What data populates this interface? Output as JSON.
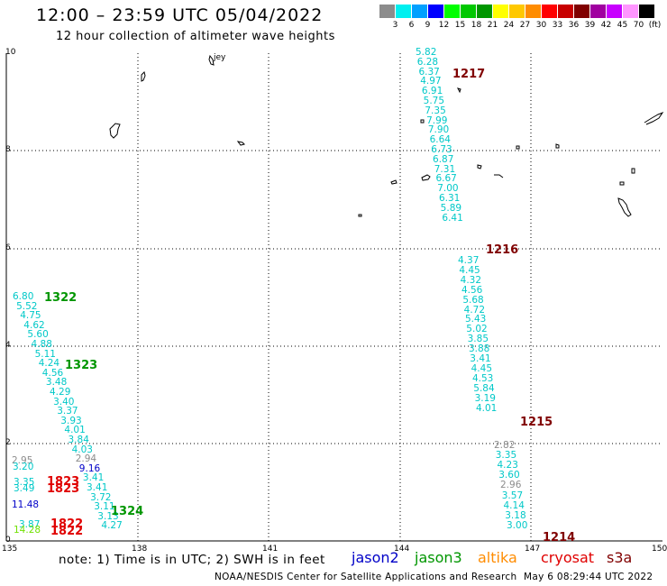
{
  "header": {
    "title": "12:00 – 23:59 UTC 05/04/2022",
    "subtitle": "12 hour collection of altimeter wave heights"
  },
  "color_scale": {
    "labels": [
      "3",
      "6",
      "9",
      "12",
      "15",
      "18",
      "21",
      "24",
      "27",
      "30",
      "33",
      "36",
      "39",
      "42",
      "45",
      "70",
      "(ft)"
    ],
    "colors": [
      "#8c8c8c",
      "#00f0f0",
      "#00a0ff",
      "#0000ff",
      "#00ff00",
      "#00c800",
      "#009600",
      "#ffff00",
      "#ffc800",
      "#ff8c00",
      "#ff0000",
      "#c80000",
      "#800000",
      "#a000a0",
      "#c800ff",
      "#ff96ff",
      "#000000"
    ]
  },
  "axes": {
    "lat_labels": [
      "10",
      "8",
      "6",
      "4",
      "2",
      "0"
    ],
    "lon_labels": [
      "135",
      "138",
      "141",
      "144",
      "147",
      "150"
    ]
  },
  "passes": {
    "p1217": {
      "id": "1217",
      "color": "#800000",
      "values": [
        "5.82",
        "6.28",
        "6.37",
        "4.97",
        "6.91",
        "5.75",
        "7.35",
        "7.99",
        "7.90",
        "6.64",
        "6.73",
        "6.87",
        "7.31",
        "6.67",
        "7.00",
        "6.31",
        "5.89",
        "6.41"
      ]
    },
    "p1216": {
      "id": "1216",
      "color": "#800000",
      "values": [
        "4.37",
        "4.45",
        "4.32",
        "4.56",
        "5.68",
        "4.72",
        "5.43",
        "5.02",
        "3.85",
        "3.88",
        "3.41",
        "4.45",
        "4.53",
        "5.84",
        "3.19",
        "4.01"
      ]
    },
    "p1215": {
      "id": "1215",
      "color": "#800000",
      "values": [
        "2.82",
        "3.35",
        "4.23",
        "3.60",
        "2.96",
        "3.57",
        "4.14",
        "3.18",
        "3.00"
      ]
    },
    "p1214": {
      "id": "1214",
      "color": "#800000"
    },
    "p1322": {
      "id": "1322",
      "color": "#009600",
      "values": [
        "6.80",
        "5.52",
        "4.75",
        "4.62",
        "5.60",
        "4.88",
        "5.11",
        "4.24",
        "4.56",
        "3.48",
        "4.29",
        "3.40",
        "3.37",
        "3.93",
        "4.01",
        "3.84",
        "4.03",
        "2.94",
        "9.16",
        "3.41",
        "3.41",
        "3.72",
        "3.11",
        "3.13",
        "4.27"
      ]
    },
    "p1323": {
      "id": "1323",
      "color": "#009600"
    },
    "p1324": {
      "id": "1324",
      "color": "#009600"
    },
    "left_cluster": {
      "v_295": "2.95",
      "v_320": "3.20",
      "v_335": "3.35",
      "v_349": "3.49",
      "v_1148": "11.48",
      "v_387": "3.87",
      "v_1428": "14.28",
      "id_1823a": "1823",
      "id_1823b": "1823",
      "id_1822a": "1822",
      "id_1822b": "1822"
    }
  },
  "map": {
    "place_label": "jey"
  },
  "footer": {
    "note": "note:  1) Time is in UTC;  2) SWH is in feet",
    "satellites": [
      {
        "name": "jason2",
        "color": "#0000c8"
      },
      {
        "name": "jason3",
        "color": "#009600"
      },
      {
        "name": "altika",
        "color": "#ff8c00"
      },
      {
        "name": "cryosat",
        "color": "#e00000"
      },
      {
        "name": "s3a",
        "color": "#800000"
      }
    ],
    "credit": "NOAA/NESDIS Center for Satellite Applications and Research",
    "timestamp": "May  6 08:29:44 UTC 2022"
  }
}
